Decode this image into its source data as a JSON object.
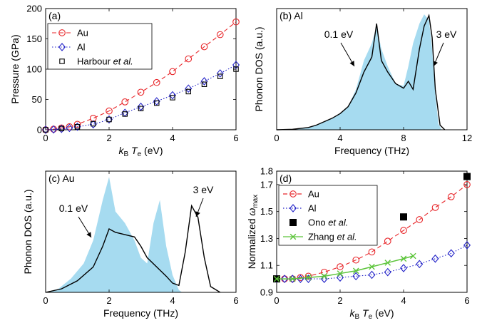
{
  "chart_data": [
    {
      "panel": "(a)",
      "type": "scatter",
      "xlabel_main": "k",
      "xlabel_sub1": "B",
      "xlabel_main2": "T",
      "xlabel_sub2": "e",
      "xlabel_unit": "(eV)",
      "ylabel": "Pressure (GPa)",
      "xlim": [
        0,
        6
      ],
      "ylim": [
        0,
        200
      ],
      "xticks": [
        0,
        2,
        4,
        6
      ],
      "yticks": [
        0,
        50,
        100,
        150,
        200
      ],
      "legend_position": "top-left",
      "series": [
        {
          "name": "Au",
          "style": "circle-dashed",
          "color": "#e8262a",
          "x": [
            0,
            0.25,
            0.5,
            0.75,
            1,
            1.5,
            2,
            2.5,
            3,
            3.5,
            4,
            4.5,
            5,
            5.5,
            6
          ],
          "y": [
            0,
            1,
            3,
            5,
            9,
            19,
            31,
            46,
            62,
            78,
            96,
            117,
            137,
            157,
            178
          ]
        },
        {
          "name": "Al",
          "style": "diamond-dotted",
          "color": "#2323c8",
          "x": [
            0,
            0.25,
            0.5,
            0.75,
            1,
            1.5,
            2,
            2.5,
            3,
            3.5,
            4,
            4.5,
            5,
            5.5,
            6
          ],
          "y": [
            0,
            0.5,
            1.5,
            3,
            5,
            9,
            17,
            28,
            38,
            47,
            57,
            68,
            80,
            93,
            107
          ]
        },
        {
          "name": "Harbour et al.",
          "style": "square",
          "color": "#000000",
          "x": [
            0,
            0.5,
            1,
            1.5,
            2,
            2.5,
            3,
            3.5,
            4,
            4.5,
            5,
            5.5,
            6
          ],
          "y": [
            0,
            2,
            5,
            10,
            17,
            26,
            35,
            44,
            53,
            63,
            75,
            88,
            100
          ]
        }
      ]
    },
    {
      "panel": "(b) Al",
      "type": "area",
      "xlabel": "Frequency (THz)",
      "ylabel": "Phonon DOS (a.u.)",
      "xlim": [
        0,
        12
      ],
      "xticks": [
        0,
        4,
        8,
        12
      ],
      "annotations": [
        "0.1 eV",
        "3 eV"
      ],
      "series": [
        {
          "name": "0.1 eV",
          "style": "filled",
          "color": "#a6dbf0",
          "x": [
            0,
            1,
            2,
            2.5,
            3,
            3.5,
            4,
            4.5,
            5,
            5.5,
            6,
            6.3,
            6.6,
            7,
            7.5,
            8,
            8.3,
            8.6,
            9,
            9.3,
            9.6,
            9.8,
            10,
            10.2,
            10.4
          ],
          "y": [
            0,
            0.4,
            2,
            4,
            7,
            10,
            14,
            20,
            35,
            60,
            75,
            90,
            70,
            55,
            40,
            38,
            55,
            75,
            92,
            100,
            95,
            70,
            30,
            5,
            0
          ]
        },
        {
          "name": "3 eV",
          "style": "line",
          "color": "#000000",
          "x": [
            0,
            1,
            2,
            2.5,
            3,
            3.5,
            4,
            4.5,
            5,
            5.5,
            6,
            6.3,
            6.6,
            7,
            7.5,
            8,
            8.3,
            8.6,
            9,
            9.3,
            9.6,
            9.8,
            10,
            10.3,
            10.6
          ],
          "y": [
            0,
            0.4,
            2,
            4,
            7,
            10,
            14,
            20,
            32,
            50,
            63,
            92,
            60,
            50,
            40,
            36,
            42,
            35,
            70,
            90,
            99,
            80,
            35,
            4,
            0
          ]
        }
      ]
    },
    {
      "panel": "(c) Au",
      "type": "area",
      "xlabel": "Frequency (THz)",
      "ylabel": "Phonon DOS (a.u.)",
      "xlim": [
        0,
        6
      ],
      "xticks": [
        0,
        2,
        4,
        6
      ],
      "annotations": [
        "0.1 eV",
        "3 eV"
      ],
      "series": [
        {
          "name": "0.1 eV",
          "style": "filled",
          "color": "#a6dbf0",
          "x": [
            0,
            0.4,
            0.8,
            1.2,
            1.5,
            1.8,
            2,
            2.2,
            2.5,
            2.8,
            3,
            3.2,
            3.4,
            3.6,
            3.8,
            4,
            4.2,
            4.3
          ],
          "y": [
            0,
            3,
            12,
            25,
            45,
            80,
            100,
            70,
            60,
            45,
            30,
            25,
            60,
            80,
            40,
            15,
            2,
            0
          ]
        },
        {
          "name": "3 eV",
          "style": "line",
          "color": "#000000",
          "x": [
            0,
            0.5,
            1,
            1.5,
            1.8,
            2,
            2.2,
            2.5,
            2.8,
            3,
            3.2,
            3.5,
            3.8,
            4,
            4.2,
            4.4,
            4.6,
            4.8,
            5,
            5.2,
            5.5
          ],
          "y": [
            0,
            3,
            10,
            22,
            40,
            55,
            52,
            50,
            48,
            40,
            30,
            22,
            14,
            8,
            6,
            35,
            75,
            65,
            30,
            5,
            0
          ]
        }
      ]
    },
    {
      "panel": "(d)",
      "type": "scatter",
      "xlabel_main": "k",
      "xlabel_sub1": "B",
      "xlabel_main2": "T",
      "xlabel_sub2": "e",
      "xlabel_unit": "(eV)",
      "ylabel_main": "Normalized ",
      "ylabel_sym": "ω",
      "ylabel_sub": "max",
      "xlim": [
        0,
        6
      ],
      "ylim": [
        0.9,
        1.8
      ],
      "xticks": [
        0,
        2,
        4,
        6
      ],
      "yticks": [
        0.9,
        1.1,
        1.3,
        1.5,
        1.7
      ],
      "ytick_labels": [
        "0.9",
        "1.1",
        "1.3",
        "1.5",
        "1.7"
      ],
      "ytick_extra_label": "1.8",
      "legend_position": "top-left",
      "series": [
        {
          "name": "Au",
          "style": "circle-dashed",
          "color": "#e8262a",
          "x": [
            0,
            0.25,
            0.5,
            0.75,
            1,
            1.5,
            2,
            2.5,
            3,
            3.5,
            4,
            4.5,
            5,
            5.5,
            6
          ],
          "y": [
            1.0,
            1.0,
            1.0,
            1.01,
            1.02,
            1.05,
            1.09,
            1.14,
            1.2,
            1.28,
            1.36,
            1.44,
            1.53,
            1.61,
            1.7
          ]
        },
        {
          "name": "Al",
          "style": "diamond-dotted",
          "color": "#2323c8",
          "x": [
            0,
            0.25,
            0.5,
            0.75,
            1,
            1.5,
            2,
            2.5,
            3,
            3.5,
            4,
            4.5,
            5,
            5.5,
            6
          ],
          "y": [
            1.0,
            1.0,
            1.0,
            1.0,
            1.0,
            1.0,
            1.01,
            1.02,
            1.03,
            1.05,
            1.08,
            1.11,
            1.15,
            1.19,
            1.25
          ]
        },
        {
          "name": "Ono et al.",
          "style": "filled-square",
          "color": "#000000",
          "x": [
            0,
            4,
            6
          ],
          "y": [
            1.0,
            1.46,
            1.76
          ]
        },
        {
          "name": "Zhang et al.",
          "style": "x-solid",
          "color": "#5cc43a",
          "x": [
            0,
            0.5,
            1,
            1.5,
            2,
            2.5,
            3,
            3.5,
            4,
            4.3
          ],
          "y": [
            1.0,
            1.0,
            1.01,
            1.02,
            1.04,
            1.06,
            1.09,
            1.12,
            1.15,
            1.17
          ]
        }
      ]
    }
  ]
}
